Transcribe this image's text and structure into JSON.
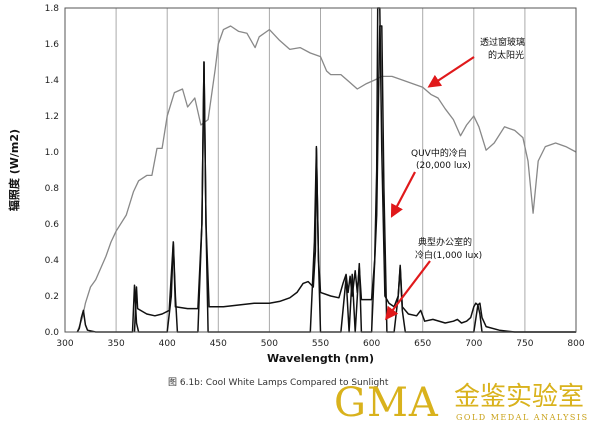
{
  "chart_data": {
    "type": "line",
    "xlabel": "Wavelength (nm)",
    "ylabel": "辐照度 (W/m2)",
    "xlim": [
      300,
      800
    ],
    "ylim": [
      0,
      1.8
    ],
    "x_ticks": [
      300,
      350,
      400,
      450,
      500,
      550,
      600,
      650,
      700,
      750,
      800
    ],
    "y_ticks": [
      0.0,
      0.2,
      0.4,
      0.6,
      0.8,
      1.0,
      1.2,
      1.4,
      1.6,
      1.8
    ],
    "y_tick_labels": [
      "0.0",
      "0.2",
      "0.4",
      "0.6",
      "0.8",
      "1.0",
      "1.2",
      "1.4",
      "1.6",
      "1.8"
    ],
    "grid": "vertical",
    "series": [
      {
        "color": "#888888",
        "points": [
          [
            312,
            0.0
          ],
          [
            317,
            0.08
          ],
          [
            320,
            0.16
          ],
          [
            325,
            0.25
          ],
          [
            330,
            0.29
          ],
          [
            340,
            0.42
          ],
          [
            345,
            0.5
          ],
          [
            350,
            0.56
          ],
          [
            360,
            0.65
          ],
          [
            367,
            0.78
          ],
          [
            372,
            0.84
          ],
          [
            380,
            0.87
          ],
          [
            385,
            0.87
          ],
          [
            390,
            1.02
          ],
          [
            395,
            1.02
          ],
          [
            400,
            1.2
          ],
          [
            407,
            1.33
          ],
          [
            415,
            1.35
          ],
          [
            420,
            1.25
          ],
          [
            427,
            1.3
          ],
          [
            433,
            1.15
          ],
          [
            440,
            1.18
          ],
          [
            447,
            1.46
          ],
          [
            450,
            1.6
          ],
          [
            455,
            1.68
          ],
          [
            462,
            1.7
          ],
          [
            470,
            1.67
          ],
          [
            478,
            1.66
          ],
          [
            486,
            1.58
          ],
          [
            490,
            1.64
          ],
          [
            500,
            1.68
          ],
          [
            510,
            1.62
          ],
          [
            520,
            1.57
          ],
          [
            530,
            1.58
          ],
          [
            540,
            1.55
          ],
          [
            550,
            1.53
          ],
          [
            556,
            1.45
          ],
          [
            560,
            1.43
          ],
          [
            570,
            1.43
          ],
          [
            578,
            1.39
          ],
          [
            586,
            1.35
          ],
          [
            595,
            1.38
          ],
          [
            603,
            1.4
          ],
          [
            610,
            1.42
          ],
          [
            620,
            1.42
          ],
          [
            630,
            1.4
          ],
          [
            640,
            1.38
          ],
          [
            650,
            1.36
          ],
          [
            658,
            1.32
          ],
          [
            665,
            1.3
          ],
          [
            672,
            1.24
          ],
          [
            680,
            1.18
          ],
          [
            687,
            1.09
          ],
          [
            693,
            1.15
          ],
          [
            700,
            1.2
          ],
          [
            705,
            1.14
          ],
          [
            712,
            1.01
          ],
          [
            720,
            1.05
          ],
          [
            730,
            1.14
          ],
          [
            740,
            1.12
          ],
          [
            748,
            1.08
          ],
          [
            753,
            0.95
          ],
          [
            758,
            0.66
          ],
          [
            763,
            0.95
          ],
          [
            770,
            1.03
          ],
          [
            780,
            1.05
          ],
          [
            790,
            1.03
          ],
          [
            800,
            1.0
          ]
        ]
      },
      {
        "color": "#111111",
        "points": [
          [
            312,
            0.0
          ],
          [
            314,
            0.02
          ],
          [
            316,
            0.08
          ],
          [
            318,
            0.12
          ],
          [
            320,
            0.04
          ],
          [
            322,
            0.01
          ],
          [
            330,
            0.0
          ],
          [
            360,
            0.0
          ],
          [
            366,
            0.0
          ],
          [
            368,
            0.26
          ],
          [
            370,
            0.05
          ],
          [
            372,
            0.0
          ],
          [
            400,
            0.0
          ],
          [
            404,
            0.2
          ],
          [
            406,
            0.5
          ],
          [
            408,
            0.2
          ],
          [
            410,
            0.0
          ],
          [
            430,
            0.0
          ],
          [
            434,
            0.6
          ],
          [
            436,
            1.5
          ],
          [
            438,
            0.6
          ],
          [
            440,
            0.0
          ],
          [
            540,
            0.0
          ],
          [
            544,
            0.5
          ],
          [
            546,
            1.02
          ],
          [
            548,
            0.4
          ],
          [
            550,
            0.0
          ],
          [
            570,
            0.0
          ],
          [
            575,
            0.3
          ],
          [
            578,
            0.0
          ],
          [
            581,
            0.32
          ],
          [
            584,
            0.0
          ],
          [
            588,
            0.38
          ],
          [
            590,
            0.0
          ],
          [
            600,
            0.0
          ],
          [
            605,
            0.65
          ],
          [
            607,
            1.4
          ],
          [
            608,
            1.7
          ],
          [
            610,
            1.7
          ],
          [
            612,
            0.8
          ],
          [
            615,
            0.0
          ],
          [
            622,
            0.0
          ],
          [
            626,
            0.2
          ],
          [
            628,
            0.36
          ],
          [
            630,
            0.12
          ],
          [
            633,
            0.0
          ],
          [
            700,
            0.0
          ],
          [
            704,
            0.15
          ],
          [
            706,
            0.1
          ],
          [
            708,
            0.0
          ],
          [
            730,
            0.0
          ],
          [
            800,
            0.0
          ]
        ]
      },
      {
        "color": "#111111",
        "points": [
          [
            368,
            0.0
          ],
          [
            370,
            0.25
          ],
          [
            371,
            0.13
          ],
          [
            380,
            0.1
          ],
          [
            388,
            0.09
          ],
          [
            395,
            0.1
          ],
          [
            402,
            0.12
          ],
          [
            406,
            0.5
          ],
          [
            408,
            0.14
          ],
          [
            420,
            0.13
          ],
          [
            430,
            0.13
          ],
          [
            434,
            0.6
          ],
          [
            436,
            1.5
          ],
          [
            438,
            0.6
          ],
          [
            441,
            0.14
          ],
          [
            455,
            0.14
          ],
          [
            470,
            0.15
          ],
          [
            485,
            0.16
          ],
          [
            500,
            0.16
          ],
          [
            510,
            0.17
          ],
          [
            520,
            0.19
          ],
          [
            527,
            0.22
          ],
          [
            533,
            0.27
          ],
          [
            538,
            0.28
          ],
          [
            543,
            0.25
          ],
          [
            545,
            0.45
          ],
          [
            546,
            1.03
          ],
          [
            548,
            0.4
          ],
          [
            550,
            0.22
          ],
          [
            560,
            0.2
          ],
          [
            568,
            0.19
          ],
          [
            572,
            0.27
          ],
          [
            575,
            0.32
          ],
          [
            577,
            0.22
          ],
          [
            579,
            0.31
          ],
          [
            581,
            0.2
          ],
          [
            584,
            0.34
          ],
          [
            586,
            0.22
          ],
          [
            588,
            0.36
          ],
          [
            590,
            0.18
          ],
          [
            600,
            0.18
          ],
          [
            603,
            0.4
          ],
          [
            605,
            0.9
          ],
          [
            606,
            1.8
          ],
          [
            608,
            1.8
          ],
          [
            610,
            1.0
          ],
          [
            613,
            0.2
          ],
          [
            617,
            0.16
          ],
          [
            622,
            0.14
          ],
          [
            626,
            0.2
          ],
          [
            628,
            0.37
          ],
          [
            630,
            0.14
          ],
          [
            636,
            0.1
          ],
          [
            644,
            0.09
          ],
          [
            648,
            0.12
          ],
          [
            652,
            0.06
          ],
          [
            660,
            0.07
          ],
          [
            672,
            0.05
          ],
          [
            680,
            0.06
          ],
          [
            684,
            0.07
          ],
          [
            688,
            0.05
          ],
          [
            693,
            0.06
          ],
          [
            697,
            0.08
          ],
          [
            700,
            0.14
          ],
          [
            702,
            0.16
          ],
          [
            704,
            0.15
          ],
          [
            706,
            0.16
          ],
          [
            708,
            0.08
          ],
          [
            712,
            0.03
          ],
          [
            725,
            0.01
          ],
          [
            740,
            0.0
          ],
          [
            760,
            0.0
          ],
          [
            800,
            0.0
          ]
        ]
      }
    ],
    "annotations": [
      {
        "id": "sunlight",
        "lines": [
          "透过窗玻璃",
          "的太阳光"
        ]
      },
      {
        "id": "quv",
        "lines": [
          "QUV中的冷白",
          "(20,000 lux)"
        ]
      },
      {
        "id": "office",
        "lines": [
          "典型办公室的",
          "冷白(1,000 lux)"
        ]
      }
    ]
  },
  "caption": "图 6.1b:  Cool White Lamps Compared to Sunlight",
  "logo": {
    "text": "GMA",
    "chinese": "金鉴实验室",
    "english": "GOLD MEDAL ANALYSIS",
    "color": "#d9b21c"
  }
}
